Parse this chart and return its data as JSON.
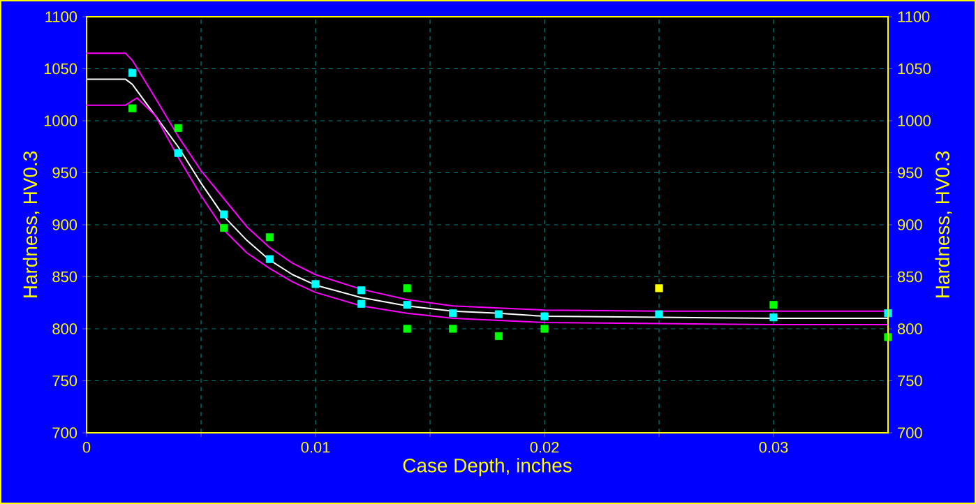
{
  "chart_data": {
    "type": "scatter",
    "xlabel": "Case Depth, inches",
    "ylabel": "Hardness, HV0.3",
    "y2label": "Hardness, HV0.3",
    "xlim": [
      0,
      0.035
    ],
    "ylim": [
      700,
      1100
    ],
    "y2lim": [
      700,
      1100
    ],
    "xticks": [
      0,
      {
        "value": 0.005,
        "label": null
      },
      0.01,
      {
        "value": 0.015,
        "label": null
      },
      0.02,
      {
        "value": 0.025,
        "label": null
      },
      0.03
    ],
    "yticks": [
      700,
      750,
      800,
      850,
      900,
      950,
      1000,
      1050,
      1100
    ],
    "y2ticks": [
      700,
      750,
      800,
      850,
      900,
      950,
      1000,
      1050,
      1100
    ],
    "grid": true,
    "marker": "square",
    "series": [
      {
        "type": "line",
        "marker": "none",
        "color": "#ff00ff",
        "x": [
          0,
          0.0017,
          0.002,
          0.003,
          0.004,
          0.005,
          0.006,
          0.007,
          0.008,
          0.009,
          0.01,
          0.012,
          0.014,
          0.016,
          0.018,
          0.02,
          0.025,
          0.03,
          0.035
        ],
        "values": [
          1065,
          1065,
          1058,
          1022,
          985,
          952,
          925,
          898,
          878,
          863,
          852,
          838,
          828,
          822,
          820,
          818,
          817,
          817,
          817
        ]
      },
      {
        "type": "line",
        "marker": "none",
        "color": "#ffffff",
        "x": [
          0,
          0.0017,
          0.002,
          0.003,
          0.004,
          0.005,
          0.006,
          0.007,
          0.008,
          0.009,
          0.01,
          0.012,
          0.014,
          0.016,
          0.018,
          0.02,
          0.025,
          0.03,
          0.035
        ],
        "values": [
          1040,
          1040,
          1035,
          1005,
          975,
          940,
          908,
          885,
          866,
          852,
          842,
          830,
          822,
          817,
          815,
          812,
          811,
          810,
          810
        ]
      },
      {
        "type": "line",
        "marker": "none",
        "color": "#ff00ff",
        "x": [
          0,
          0.0017,
          0.0022,
          0.003,
          0.004,
          0.005,
          0.006,
          0.007,
          0.008,
          0.009,
          0.01,
          0.012,
          0.014,
          0.016,
          0.018,
          0.02,
          0.025,
          0.03,
          0.035
        ],
        "values": [
          1015,
          1015,
          1022,
          1005,
          965,
          928,
          895,
          873,
          858,
          845,
          835,
          822,
          815,
          810,
          808,
          806,
          805,
          804,
          804
        ]
      },
      {
        "color": "#00ff00",
        "x": [
          0.002,
          0.004,
          0.006,
          0.008,
          0.014,
          0.014,
          0.016,
          0.018,
          0.02,
          0.03,
          0.035
        ],
        "values": [
          1012,
          993,
          897,
          888,
          839,
          800,
          800,
          793,
          800,
          823,
          792
        ]
      },
      {
        "color": "#ffff00",
        "x": [
          0.025
        ],
        "values": [
          839
        ]
      },
      {
        "color": "#00ffff",
        "x": [
          0.002,
          0.004,
          0.006,
          0.008,
          0.01,
          0.012,
          0.012,
          0.014,
          0.016,
          0.018,
          0.02,
          0.025,
          0.03,
          0.035
        ],
        "values": [
          1046,
          969,
          910,
          867,
          843,
          837,
          824,
          823,
          815,
          814,
          812,
          814,
          811,
          815
        ]
      }
    ]
  }
}
